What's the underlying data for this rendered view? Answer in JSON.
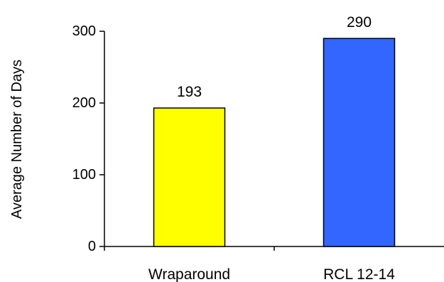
{
  "chart_data": {
    "type": "bar",
    "categories": [
      "Wraparound",
      "RCL 12-14"
    ],
    "values": [
      193,
      290
    ],
    "data_labels": [
      "193",
      "290"
    ],
    "bar_colors": [
      "#FFFF00",
      "#3366FF"
    ],
    "title": "",
    "xlabel": "",
    "ylabel": "Average Number of Days",
    "ylim": [
      0,
      300
    ],
    "yticks": [
      0,
      100,
      200,
      300
    ],
    "ytick_labels": [
      "0",
      "100",
      "200",
      "300"
    ],
    "grid": false,
    "legend": "none"
  }
}
